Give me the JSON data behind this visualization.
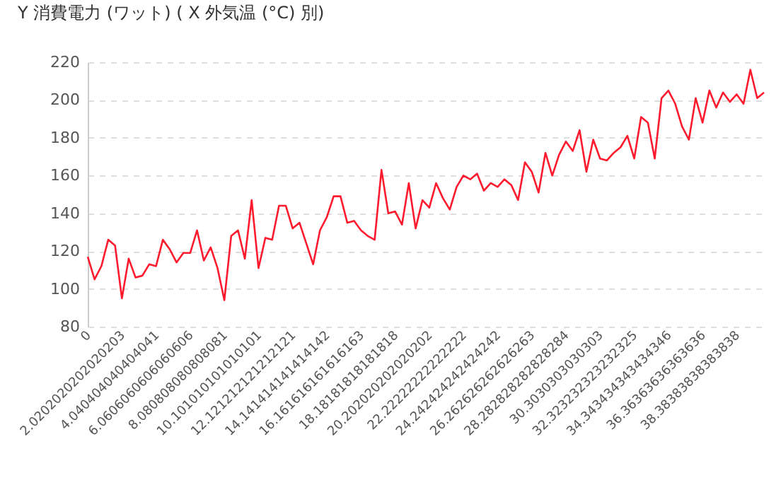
{
  "chart_data": {
    "type": "line",
    "title": "Y 消費電力 (ワット) ( X 外気温 (°C) 別)",
    "categories": [
      "0",
      null,
      null,
      null,
      null,
      "2.0202020202020203",
      null,
      null,
      null,
      null,
      "4.040404040404041",
      null,
      null,
      null,
      null,
      "6.0606060606060606",
      null,
      null,
      null,
      null,
      "8.080808080808081",
      null,
      null,
      null,
      null,
      "10.101010101010101",
      null,
      null,
      null,
      null,
      "12.121212121212121",
      null,
      null,
      null,
      null,
      "14.141414141414142",
      null,
      null,
      null,
      null,
      "16.161616161616163",
      null,
      null,
      null,
      null,
      "18.18181818181818",
      null,
      null,
      null,
      null,
      "20.202020202020202",
      null,
      null,
      null,
      null,
      "22.22222222222222",
      null,
      null,
      null,
      null,
      "24.242424242424242",
      null,
      null,
      null,
      null,
      "26.262626262626263",
      null,
      null,
      null,
      null,
      "28.282828282828284",
      null,
      null,
      null,
      null,
      "30.3030303030303",
      null,
      null,
      null,
      null,
      "32.323232323232325",
      null,
      null,
      null,
      null,
      "34.343434343434346",
      null,
      null,
      null,
      null,
      "36.36363636363636",
      null,
      null,
      null,
      null,
      "38.38383838383838",
      null,
      null,
      null,
      null
    ],
    "series": [
      {
        "color": "#ff1a2e",
        "values": [
          117,
          105,
          112,
          126,
          123,
          95,
          116,
          106,
          107,
          113,
          112,
          126,
          121,
          114,
          119,
          119,
          131,
          115,
          122,
          111,
          94,
          128,
          131,
          116,
          147,
          111,
          127,
          126,
          144,
          144,
          132,
          135,
          124,
          113,
          131,
          138,
          149,
          149,
          135,
          136,
          131,
          128,
          126,
          163,
          140,
          141,
          134,
          156,
          132,
          147,
          143,
          156,
          148,
          142,
          154,
          160,
          158,
          161,
          152,
          156,
          154,
          158,
          155,
          147,
          167,
          162,
          151,
          172,
          160,
          171,
          178,
          173,
          184,
          162,
          179,
          169,
          168,
          172,
          175,
          181,
          169,
          191,
          188,
          169,
          201,
          205,
          198,
          186,
          179,
          201,
          188,
          205,
          196,
          204,
          199,
          203,
          198,
          216,
          201,
          204
        ]
      }
    ],
    "ylim": [
      80,
      220
    ],
    "yticks": [
      80,
      100,
      120,
      140,
      160,
      180,
      200,
      220
    ],
    "grid": "y",
    "marker": "none",
    "line_style": "solid",
    "legend": false
  }
}
